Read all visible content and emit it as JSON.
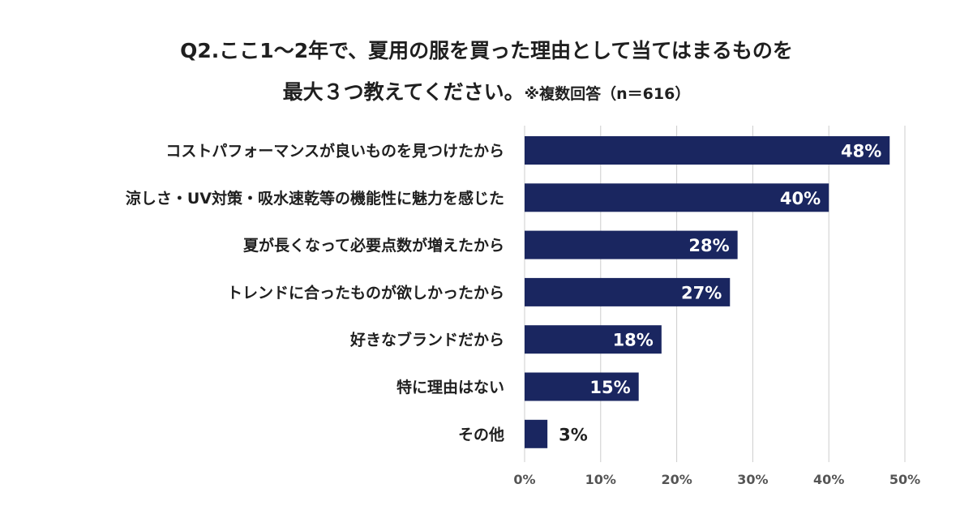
{
  "chart_data": {
    "type": "bar",
    "orientation": "horizontal",
    "title": "Q2.ここ1～2年で、夏用の服を買った理由として当てはまるものを",
    "title_line2": "最大３つ教えてください。",
    "title_note": "※複数回答（n＝616）",
    "categories": [
      "コストパフォーマンスが良いものを見つけたから",
      "涼しさ・UV対策・吸水速乾等の機能性に魅力を感じた",
      "夏が長くなって必要点数が増えたから",
      "トレンドに合ったものが欲しかったから",
      "好きなブランドだから",
      "特に理由はない",
      "その他"
    ],
    "values": [
      48,
      40,
      28,
      27,
      18,
      15,
      3
    ],
    "value_labels": [
      "48%",
      "40%",
      "28%",
      "27%",
      "18%",
      "15%",
      "3%"
    ],
    "xlim": [
      0,
      50
    ],
    "xticks": [
      0,
      10,
      20,
      30,
      40,
      50
    ],
    "xtick_labels": [
      "0%",
      "10%",
      "20%",
      "30%",
      "40%",
      "50%"
    ],
    "grid": true,
    "colors": {
      "bar": "#1a2660",
      "grid": "#cccccc",
      "label_inside": "#ffffff",
      "label_outside": "#1f1f1f",
      "text": "#1f1f1f"
    }
  }
}
